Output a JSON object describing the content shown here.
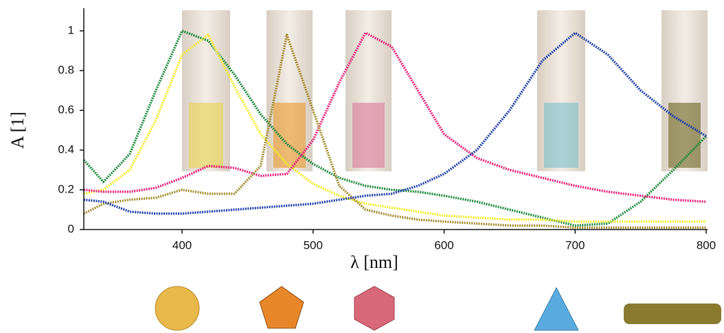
{
  "chart_data": {
    "type": "line",
    "xlabel": "λ [nm]",
    "ylabel": "A [1]",
    "x": [
      325,
      340,
      360,
      380,
      400,
      420,
      440,
      460,
      480,
      500,
      520,
      540,
      560,
      580,
      600,
      625,
      650,
      675,
      700,
      725,
      750,
      775,
      800
    ],
    "series": [
      {
        "color": "#1e8a3c",
        "values": [
          0.35,
          0.24,
          0.38,
          0.7,
          1.0,
          0.95,
          0.78,
          0.58,
          0.43,
          0.33,
          0.26,
          0.22,
          0.2,
          0.19,
          0.17,
          0.14,
          0.1,
          0.06,
          0.02,
          0.03,
          0.14,
          0.3,
          0.47
        ]
      },
      {
        "color": "#f2ec2a",
        "values": [
          0.18,
          0.2,
          0.3,
          0.55,
          0.88,
          0.98,
          0.72,
          0.48,
          0.33,
          0.23,
          0.17,
          0.13,
          0.11,
          0.09,
          0.07,
          0.06,
          0.05,
          0.05,
          0.04,
          0.04,
          0.04,
          0.04,
          0.04
        ]
      },
      {
        "color": "#e8207a",
        "values": [
          0.2,
          0.19,
          0.19,
          0.21,
          0.26,
          0.32,
          0.31,
          0.27,
          0.28,
          0.45,
          0.74,
          0.99,
          0.92,
          0.7,
          0.48,
          0.36,
          0.3,
          0.26,
          0.22,
          0.19,
          0.17,
          0.15,
          0.14
        ]
      },
      {
        "color": "#a38c2c",
        "values": [
          0.08,
          0.13,
          0.15,
          0.16,
          0.2,
          0.18,
          0.18,
          0.32,
          0.98,
          0.6,
          0.22,
          0.1,
          0.07,
          0.05,
          0.04,
          0.03,
          0.02,
          0.02,
          0.01,
          0.01,
          0.01,
          0.01,
          0.01
        ]
      },
      {
        "color": "#1f3fa8",
        "values": [
          0.15,
          0.14,
          0.09,
          0.08,
          0.08,
          0.09,
          0.1,
          0.11,
          0.12,
          0.13,
          0.15,
          0.17,
          0.18,
          0.22,
          0.28,
          0.4,
          0.6,
          0.85,
          0.99,
          0.88,
          0.7,
          0.57,
          0.47
        ]
      }
    ],
    "xlim": [
      325,
      800
    ],
    "ylim": [
      0,
      1.1
    ],
    "xticks": [
      400,
      500,
      600,
      700,
      800
    ],
    "yticks": [
      0,
      0.2,
      0.4,
      0.6,
      0.8,
      1
    ]
  }
}
